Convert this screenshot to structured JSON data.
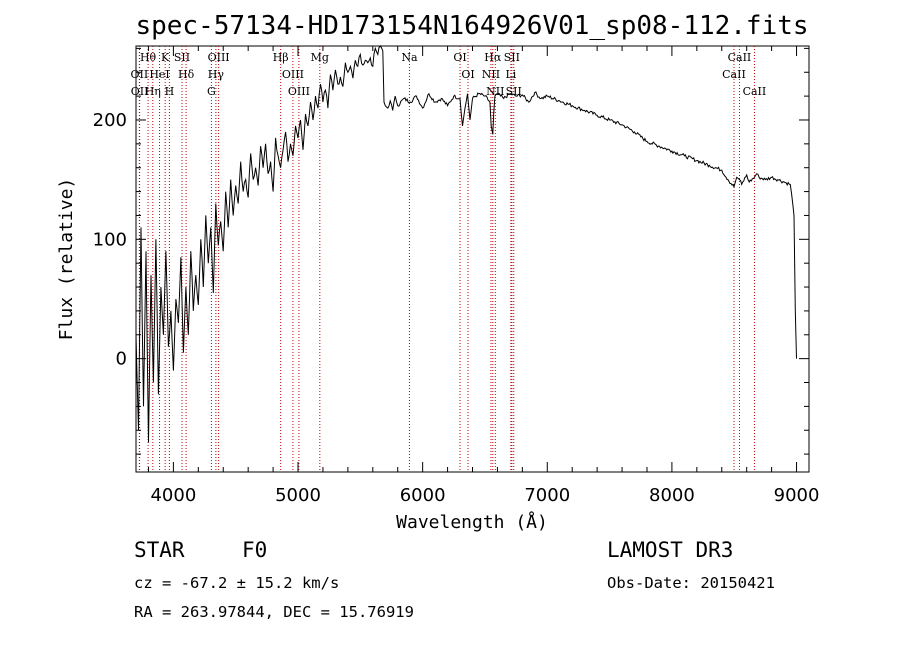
{
  "chart_data": {
    "type": "line",
    "title": "spec-57134-HD173154N164926V01_sp08-112.fits",
    "xlabel": "Wavelength (Å)",
    "ylabel": "Flux (relative)",
    "xlim": [
      3700,
      9100
    ],
    "ylim": [
      -95,
      262
    ],
    "x_ticks": [
      4000,
      5000,
      6000,
      7000,
      8000,
      9000
    ],
    "y_ticks": [
      0,
      100,
      200
    ],
    "x_tick_labels": [
      "4000",
      "5000",
      "6000",
      "7000",
      "8000",
      "9000"
    ],
    "y_tick_labels": [
      "0",
      "100",
      "200"
    ],
    "series": [
      {
        "name": "spectrum",
        "x": [
          3700,
          3720,
          3740,
          3760,
          3780,
          3800,
          3820,
          3840,
          3860,
          3880,
          3900,
          3920,
          3940,
          3960,
          3980,
          4000,
          4020,
          4040,
          4060,
          4080,
          4100,
          4120,
          4140,
          4160,
          4180,
          4200,
          4220,
          4240,
          4260,
          4280,
          4300,
          4320,
          4340,
          4360,
          4380,
          4400,
          4420,
          4440,
          4460,
          4480,
          4500,
          4520,
          4540,
          4560,
          4580,
          4600,
          4620,
          4640,
          4660,
          4680,
          4700,
          4720,
          4740,
          4760,
          4780,
          4800,
          4820,
          4840,
          4860,
          4880,
          4900,
          4920,
          4940,
          4960,
          4980,
          5000,
          5020,
          5040,
          5060,
          5080,
          5100,
          5120,
          5140,
          5160,
          5180,
          5200,
          5220,
          5240,
          5260,
          5280,
          5300,
          5320,
          5340,
          5360,
          5380,
          5400,
          5420,
          5440,
          5460,
          5480,
          5500,
          5520,
          5540,
          5560,
          5580,
          5600,
          5620,
          5640,
          5660,
          5680,
          5690,
          5700,
          5720,
          5740,
          5760,
          5780,
          5800,
          5850,
          5900,
          5950,
          6000,
          6050,
          6100,
          6150,
          6200,
          6250,
          6300,
          6320,
          6340,
          6360,
          6380,
          6400,
          6450,
          6500,
          6540,
          6550,
          6563,
          6570,
          6580,
          6600,
          6650,
          6700,
          6750,
          6800,
          6850,
          6900,
          6950,
          7000,
          7100,
          7200,
          7300,
          7400,
          7500,
          7600,
          7700,
          7800,
          7900,
          8000,
          8100,
          8200,
          8300,
          8400,
          8450,
          8498,
          8520,
          8542,
          8560,
          8600,
          8620,
          8662,
          8680,
          8700,
          8750,
          8800,
          8850,
          8900,
          8950,
          8980,
          8990,
          9000
        ],
        "y": [
          20,
          -60,
          110,
          -40,
          90,
          -70,
          70,
          -20,
          100,
          -30,
          60,
          20,
          90,
          10,
          40,
          -10,
          50,
          30,
          85,
          5,
          60,
          20,
          90,
          40,
          70,
          45,
          100,
          60,
          120,
          80,
          110,
          55,
          130,
          95,
          115,
          90,
          140,
          110,
          150,
          120,
          145,
          130,
          165,
          140,
          150,
          135,
          172,
          150,
          160,
          145,
          178,
          160,
          180,
          155,
          165,
          140,
          185,
          170,
          160,
          175,
          190,
          165,
          180,
          170,
          195,
          185,
          200,
          175,
          205,
          195,
          215,
          200,
          220,
          210,
          230,
          215,
          225,
          210,
          238,
          225,
          242,
          230,
          236,
          228,
          248,
          240,
          245,
          235,
          250,
          245,
          255,
          246,
          250,
          248,
          252,
          245,
          260,
          255,
          262,
          258,
          215,
          212,
          210,
          216,
          208,
          220,
          212,
          218,
          215,
          220,
          210,
          222,
          215,
          218,
          212,
          220,
          218,
          195,
          210,
          222,
          200,
          218,
          222,
          220,
          215,
          195,
          188,
          205,
          220,
          222,
          218,
          222,
          220,
          221,
          215,
          223,
          218,
          220,
          216,
          212,
          208,
          204,
          200,
          196,
          190,
          182,
          178,
          174,
          170,
          166,
          162,
          158,
          150,
          144,
          152,
          150,
          146,
          154,
          148,
          152,
          155,
          152,
          150,
          152,
          150,
          148,
          146,
          120,
          40,
          0
        ]
      }
    ],
    "lines": [
      {
        "label": "Hθ",
        "x": 3797
      },
      {
        "label": "OII",
        "x": 3727
      },
      {
        "label": "OII",
        "x": 3729
      },
      {
        "label": "HeI",
        "x": 3889
      },
      {
        "label": "Hη",
        "x": 3835
      },
      {
        "label": "K",
        "x": 3934
      },
      {
        "label": "H",
        "x": 3968
      },
      {
        "label": "SII",
        "x": 4069
      },
      {
        "label": "Hδ",
        "x": 4102
      },
      {
        "label": "OIII",
        "x": 4363
      },
      {
        "label": "Hγ",
        "x": 4341
      },
      {
        "label": "G",
        "x": 4305
      },
      {
        "label": "Hβ",
        "x": 4861
      },
      {
        "label": "OIII",
        "x": 4959
      },
      {
        "label": "OIII",
        "x": 5007
      },
      {
        "label": "Mg",
        "x": 5175
      },
      {
        "label": "Na",
        "x": 5894
      },
      {
        "label": "OI",
        "x": 6300
      },
      {
        "label": "OI",
        "x": 6364
      },
      {
        "label": "Hα",
        "x": 6563
      },
      {
        "label": "NII",
        "x": 6548
      },
      {
        "label": "NII",
        "x": 6583
      },
      {
        "label": "SII",
        "x": 6716
      },
      {
        "label": "Li",
        "x": 6708
      },
      {
        "label": "SII",
        "x": 6731
      },
      {
        "label": "CaII",
        "x": 8542
      },
      {
        "label": "CaII",
        "x": 8498
      },
      {
        "label": "CaII",
        "x": 8662
      }
    ]
  },
  "info": {
    "object_class": "STAR",
    "subclass": "F0",
    "redshift": "cz = -67.2 ± 15.2 km/s",
    "coordinates": "RA = 263.97844, DEC =  15.76919",
    "survey": "LAMOST DR3",
    "obs_date": "Obs-Date: 20150421"
  },
  "colors": {
    "line_marker": "#c00000",
    "spectrum": "#000000"
  }
}
